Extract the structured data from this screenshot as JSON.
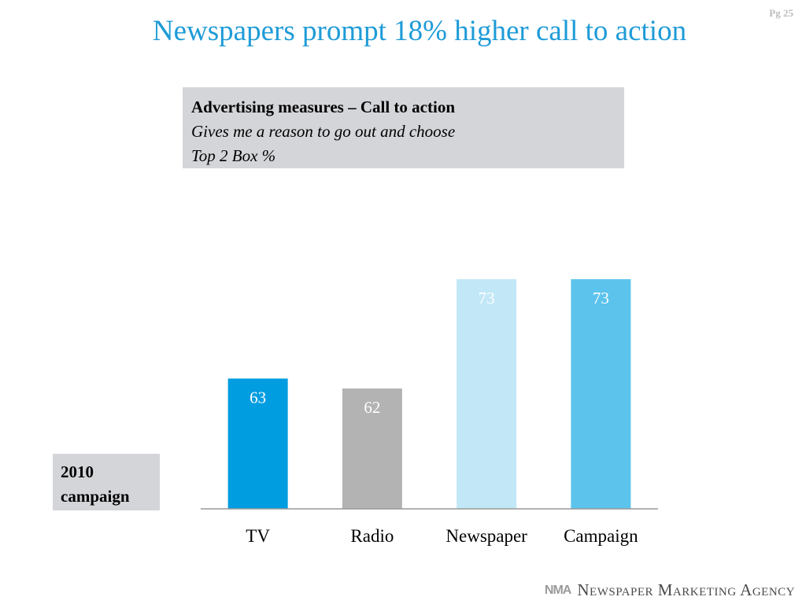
{
  "page": {
    "number": "Pg 25",
    "title": "Newspapers prompt 18% higher call to action"
  },
  "info_box": {
    "line1": "Advertising measures – Call to action",
    "line2": "Gives me a reason to go out and choose",
    "line3": "Top 2 Box %"
  },
  "campaign_box": {
    "line1": "2010",
    "line2": "campaign"
  },
  "footer": {
    "logo_mark": "NMA",
    "agency_name": "Newspaper Marketing Agency"
  },
  "colors": {
    "title": "#1e9bd7",
    "tv": "#009de0",
    "radio": "#b3b3b3",
    "newspaper": "#c2e7f7",
    "campaign": "#5cc3ec",
    "axis": "#999999"
  },
  "chart_data": {
    "type": "bar",
    "categories": [
      "TV",
      "Radio",
      "Newspaper",
      "Campaign"
    ],
    "values": [
      63,
      62,
      73,
      73
    ],
    "data_labels": [
      "63",
      "62",
      "73",
      "73"
    ],
    "bar_colors": [
      "#009de0",
      "#b3b3b3",
      "#c2e7f7",
      "#5cc3ec"
    ],
    "title": "",
    "xlabel": "",
    "ylabel": "",
    "grid": false,
    "ylim": [
      50,
      74
    ]
  }
}
